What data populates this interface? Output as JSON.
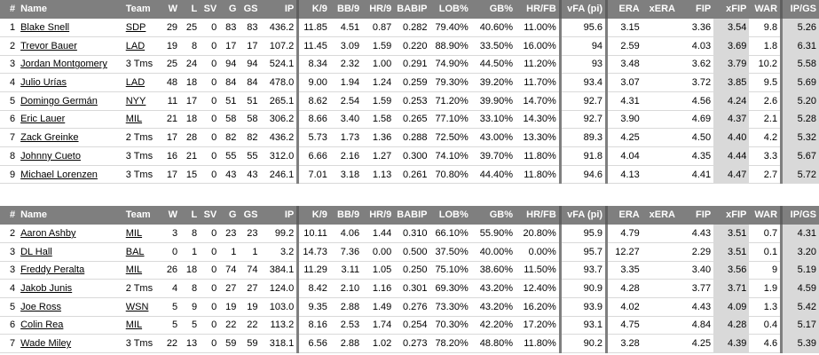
{
  "headers": [
    "#",
    "Name",
    "Team",
    "W",
    "L",
    "SV",
    "G",
    "GS",
    "IP",
    "K/9",
    "BB/9",
    "HR/9",
    "BABIP",
    "LOB%",
    "GB%",
    "HR/FB",
    "vFA (pi)",
    "ERA",
    "xERA",
    "FIP",
    "xFIP",
    "WAR",
    "IP/GS"
  ],
  "table1": [
    [
      "1",
      "Blake Snell",
      "SDP",
      "29",
      "25",
      "0",
      "83",
      "83",
      "436.2",
      "11.85",
      "4.51",
      "0.87",
      "0.282",
      "79.40%",
      "40.60%",
      "11.00%",
      "95.6",
      "3.15",
      "",
      "3.36",
      "3.54",
      "9.8",
      "5.26"
    ],
    [
      "2",
      "Trevor Bauer",
      "LAD",
      "19",
      "8",
      "0",
      "17",
      "17",
      "107.2",
      "11.45",
      "3.09",
      "1.59",
      "0.220",
      "88.90%",
      "33.50%",
      "16.00%",
      "94",
      "2.59",
      "",
      "4.03",
      "3.69",
      "1.8",
      "6.31"
    ],
    [
      "3",
      "Jordan Montgomery",
      "3 Tms",
      "25",
      "24",
      "0",
      "94",
      "94",
      "524.1",
      "8.34",
      "2.32",
      "1.00",
      "0.291",
      "74.90%",
      "44.50%",
      "11.20%",
      "93",
      "3.48",
      "",
      "3.62",
      "3.79",
      "10.2",
      "5.58"
    ],
    [
      "4",
      "Julio Urías",
      "LAD",
      "48",
      "18",
      "0",
      "84",
      "84",
      "478.0",
      "9.00",
      "1.94",
      "1.24",
      "0.259",
      "79.30%",
      "39.20%",
      "11.70%",
      "93.4",
      "3.07",
      "",
      "3.72",
      "3.85",
      "9.5",
      "5.69"
    ],
    [
      "5",
      "Domingo Germán",
      "NYY",
      "11",
      "17",
      "0",
      "51",
      "51",
      "265.1",
      "8.62",
      "2.54",
      "1.59",
      "0.253",
      "71.20%",
      "39.90%",
      "14.70%",
      "92.7",
      "4.31",
      "",
      "4.56",
      "4.24",
      "2.6",
      "5.20"
    ],
    [
      "6",
      "Eric Lauer",
      "MIL",
      "21",
      "18",
      "0",
      "58",
      "58",
      "306.2",
      "8.66",
      "3.40",
      "1.58",
      "0.265",
      "77.10%",
      "33.10%",
      "14.30%",
      "92.7",
      "3.90",
      "",
      "4.69",
      "4.37",
      "2.1",
      "5.28"
    ],
    [
      "7",
      "Zack Greinke",
      "2 Tms",
      "17",
      "28",
      "0",
      "82",
      "82",
      "436.2",
      "5.73",
      "1.73",
      "1.36",
      "0.288",
      "72.50%",
      "43.00%",
      "13.30%",
      "89.3",
      "4.25",
      "",
      "4.50",
      "4.40",
      "4.2",
      "5.32"
    ],
    [
      "8",
      "Johnny Cueto",
      "3 Tms",
      "16",
      "21",
      "0",
      "55",
      "55",
      "312.0",
      "6.66",
      "2.16",
      "1.27",
      "0.300",
      "74.10%",
      "39.70%",
      "11.80%",
      "91.8",
      "4.04",
      "",
      "4.35",
      "4.44",
      "3.3",
      "5.67"
    ],
    [
      "9",
      "Michael Lorenzen",
      "3 Tms",
      "17",
      "15",
      "0",
      "43",
      "43",
      "246.1",
      "7.01",
      "3.18",
      "1.13",
      "0.261",
      "70.80%",
      "44.40%",
      "11.80%",
      "94.6",
      "4.13",
      "",
      "4.41",
      "4.47",
      "2.7",
      "5.72"
    ]
  ],
  "table2": [
    [
      "2",
      "Aaron Ashby",
      "MIL",
      "3",
      "8",
      "0",
      "23",
      "23",
      "99.2",
      "10.11",
      "4.06",
      "1.44",
      "0.310",
      "66.10%",
      "55.90%",
      "20.80%",
      "95.9",
      "4.79",
      "",
      "4.43",
      "3.51",
      "0.7",
      "4.31"
    ],
    [
      "3",
      "DL Hall",
      "BAL",
      "0",
      "1",
      "0",
      "1",
      "1",
      "3.2",
      "14.73",
      "7.36",
      "0.00",
      "0.500",
      "37.50%",
      "40.00%",
      "0.00%",
      "95.7",
      "12.27",
      "",
      "2.29",
      "3.51",
      "0.1",
      "3.20"
    ],
    [
      "3",
      "Freddy Peralta",
      "MIL",
      "26",
      "18",
      "0",
      "74",
      "74",
      "384.1",
      "11.29",
      "3.11",
      "1.05",
      "0.250",
      "75.10%",
      "38.60%",
      "11.50%",
      "93.7",
      "3.35",
      "",
      "3.40",
      "3.56",
      "9",
      "5.19"
    ],
    [
      "4",
      "Jakob Junis",
      "2 Tms",
      "4",
      "8",
      "0",
      "27",
      "27",
      "124.0",
      "8.42",
      "2.10",
      "1.16",
      "0.301",
      "69.30%",
      "43.20%",
      "12.40%",
      "90.9",
      "4.28",
      "",
      "3.77",
      "3.71",
      "1.9",
      "4.59"
    ],
    [
      "5",
      "Joe Ross",
      "WSN",
      "5",
      "9",
      "0",
      "19",
      "19",
      "103.0",
      "9.35",
      "2.88",
      "1.49",
      "0.276",
      "73.30%",
      "43.20%",
      "16.20%",
      "93.9",
      "4.02",
      "",
      "4.43",
      "4.09",
      "1.3",
      "5.42"
    ],
    [
      "6",
      "Colin Rea",
      "MIL",
      "5",
      "5",
      "0",
      "22",
      "22",
      "113.2",
      "8.16",
      "2.53",
      "1.74",
      "0.254",
      "70.30%",
      "42.20%",
      "17.20%",
      "93.1",
      "4.75",
      "",
      "4.84",
      "4.28",
      "0.4",
      "5.17"
    ],
    [
      "7",
      "Wade Miley",
      "3 Tms",
      "22",
      "13",
      "0",
      "59",
      "59",
      "318.1",
      "6.56",
      "2.88",
      "1.02",
      "0.273",
      "78.20%",
      "48.80%",
      "11.80%",
      "90.2",
      "3.28",
      "",
      "4.25",
      "4.39",
      "4.6",
      "5.39"
    ]
  ],
  "linked_teams": [
    "SDP",
    "LAD",
    "NYY",
    "MIL",
    "BAL",
    "WSN"
  ],
  "colors": {
    "header_bg": "#7f7f7f",
    "header_text": "#ffffff",
    "highlight": "#d9d9d9",
    "separator": "#7f7f7f"
  }
}
